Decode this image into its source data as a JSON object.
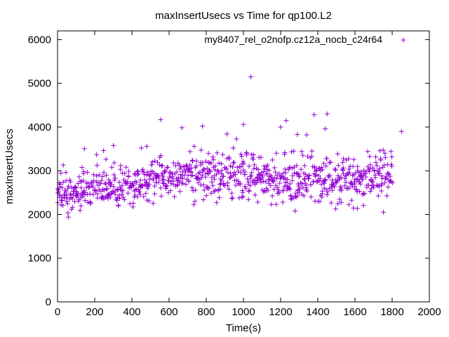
{
  "chart_data": {
    "type": "scatter",
    "title": "maxInsertUsecs vs Time for qp100.L2",
    "xlabel": "Time(s)",
    "ylabel": "maxInsertUsecs",
    "xlim": [
      0,
      2000
    ],
    "ylim": [
      0,
      6200
    ],
    "x_ticks": [
      0,
      200,
      400,
      600,
      800,
      1000,
      1200,
      1400,
      1600,
      1800,
      2000
    ],
    "y_ticks": [
      0,
      1000,
      2000,
      3000,
      4000,
      5000,
      6000
    ],
    "grid": false,
    "legend_position": "top-right",
    "marker": "+",
    "series": [
      {
        "name": "my8407_rel_o2nofp.cz12a_nocb_c24r64",
        "color": "#9400d3",
        "x_range": [
          0,
          1800
        ],
        "x_step": 5,
        "trend_y": [
          [
            0,
            2500
          ],
          [
            100,
            2450
          ],
          [
            200,
            2600
          ],
          [
            400,
            2700
          ],
          [
            600,
            2850
          ],
          [
            800,
            2900
          ],
          [
            1000,
            2850
          ],
          [
            1200,
            2800
          ],
          [
            1400,
            2800
          ],
          [
            1600,
            2800
          ],
          [
            1800,
            2900
          ]
        ],
        "spread": 220,
        "outliers": [
          [
            1040,
            5150
          ],
          [
            1450,
            4300
          ],
          [
            1380,
            4280
          ],
          [
            555,
            4170
          ],
          [
            1000,
            4060
          ],
          [
            1230,
            4150
          ],
          [
            780,
            4020
          ],
          [
            1440,
            3960
          ],
          [
            1200,
            4000
          ],
          [
            1850,
            3900
          ],
          [
            210,
            3370
          ],
          [
            480,
            3560
          ],
          [
            1290,
            3830
          ],
          [
            1340,
            3820
          ]
        ]
      }
    ]
  }
}
